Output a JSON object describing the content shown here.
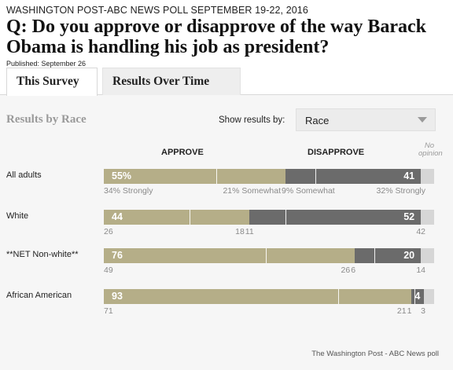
{
  "header": {
    "kicker": "WASHINGTON POST-ABC NEWS POLL SEPTEMBER 19-22, 2016",
    "question": "Q: Do you approve or disapprove of the way Barack Obama is handling his job as president?",
    "published": "Published: September 26"
  },
  "tabs": [
    {
      "label": "This Survey",
      "active": true
    },
    {
      "label": "Results Over Time",
      "active": false
    }
  ],
  "controls": {
    "section_title": "Results by Race",
    "show_label": "Show results by:",
    "selected": "Race"
  },
  "columns": {
    "approve": "APPROVE",
    "disapprove": "DISAPPROVE",
    "no_opinion": "No opinion"
  },
  "colors": {
    "approve": "#b5ae88",
    "disapprove": "#6b6b6b",
    "no_opinion": "#d6d6d6"
  },
  "chart_data": {
    "type": "bar",
    "orientation": "horizontal",
    "stacked": true,
    "categories": [
      "All adults",
      "White",
      "**NET Non-white**",
      "African American"
    ],
    "rows": [
      {
        "label": "All adults",
        "approve": 55,
        "approve_text": "55%",
        "approve_strongly": 34,
        "approve_strongly_text": "34% Strongly",
        "approve_somewhat": 21,
        "approve_somewhat_text": "21% Somewhat",
        "disapprove": 41,
        "disapprove_text": "41",
        "disapprove_somewhat": 9,
        "disapprove_somewhat_text": "9% Somewhat",
        "disapprove_strongly": 32,
        "disapprove_strongly_text": "32% Strongly",
        "no_opinion": 4,
        "no_opinion_text": ""
      },
      {
        "label": "White",
        "approve": 44,
        "approve_text": "44",
        "approve_strongly": 26,
        "approve_strongly_text": "26",
        "approve_somewhat": 18,
        "approve_somewhat_text": "18",
        "disapprove": 52,
        "disapprove_text": "52",
        "disapprove_somewhat": 11,
        "disapprove_somewhat_text": "11",
        "disapprove_strongly": 42,
        "disapprove_strongly_text": "42",
        "no_opinion": 4,
        "no_opinion_text": ""
      },
      {
        "label": "**NET Non-white**",
        "approve": 76,
        "approve_text": "76",
        "approve_strongly": 49,
        "approve_strongly_text": "49",
        "approve_somewhat": 26,
        "approve_somewhat_text": "26",
        "disapprove": 20,
        "disapprove_text": "20",
        "disapprove_somewhat": 6,
        "disapprove_somewhat_text": "6",
        "disapprove_strongly": 14,
        "disapprove_strongly_text": "14",
        "no_opinion": 4,
        "no_opinion_text": ""
      },
      {
        "label": "African American",
        "approve": 93,
        "approve_text": "93",
        "approve_strongly": 71,
        "approve_strongly_text": "71",
        "approve_somewhat": 21,
        "approve_somewhat_text": "21",
        "disapprove": 4,
        "disapprove_text": "4",
        "disapprove_somewhat": 1,
        "disapprove_somewhat_text": "1",
        "disapprove_strongly": 3,
        "disapprove_strongly_text": "3",
        "no_opinion": 3,
        "no_opinion_text": ""
      }
    ],
    "xlim": [
      0,
      100
    ]
  },
  "footer": {
    "credit": "The Washington Post - ABC News poll"
  }
}
